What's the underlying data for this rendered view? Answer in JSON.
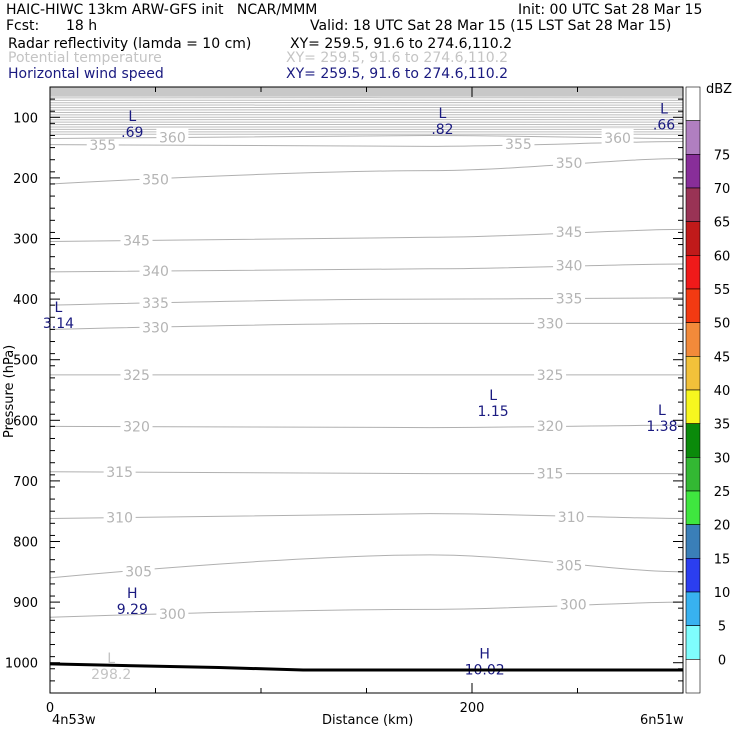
{
  "header": {
    "model_line": "HAIC-HIWC 13km ARW-GFS init   NCAR/MMM",
    "init_line": "Init: 00 UTC Sat 28 Mar 15",
    "fcst_label": "Fcst:",
    "fcst_value": "18 h",
    "valid_line": "Valid: 18 UTC Sat 28 Mar 15 (15 LST Sat 28 Mar 15)",
    "fields": [
      {
        "name": "Radar reflectivity (lamda = 10 cm)",
        "xy": "XY= 259.5, 91.6 to 274.6,110.2",
        "color": "#000000"
      },
      {
        "name": "Potential temperature",
        "xy": "XY= 259.5, 91.6 to 274.6,110.2",
        "color": "#c4c4c4"
      },
      {
        "name": "Horizontal wind speed",
        "xy": "XY= 259.5, 91.6 to 274.6,110.2",
        "color": "#1a1a80"
      }
    ]
  },
  "chart_data": {
    "type": "contour",
    "ylabel": "Pressure (hPa)",
    "xlabel": "Distance (km)",
    "x_left_label": "4n53w",
    "x_right_label": "6n51w",
    "xlim": [
      0,
      300
    ],
    "ylim": [
      1050,
      50
    ],
    "x_ticks": [
      0,
      200
    ],
    "y_ticks": [
      100,
      200,
      300,
      400,
      500,
      600,
      700,
      800,
      900,
      1000
    ],
    "theta_contours": [
      {
        "value": 300,
        "p_left": 925,
        "p_mid": 912,
        "p_right": 900,
        "labels": [
          {
            "x": 58,
            "text": "300"
          },
          {
            "x": 248,
            "text": "300"
          }
        ]
      },
      {
        "value": 305,
        "p_left": 860,
        "p_mid": 822,
        "p_right": 850,
        "labels": [
          {
            "x": 42,
            "text": "305"
          },
          {
            "x": 246,
            "text": "305"
          }
        ]
      },
      {
        "value": 310,
        "p_left": 762,
        "p_mid": 754,
        "p_right": 762,
        "labels": [
          {
            "x": 33,
            "text": "310"
          },
          {
            "x": 247,
            "text": "310"
          }
        ]
      },
      {
        "value": 315,
        "p_left": 685,
        "p_mid": 688,
        "p_right": 688,
        "labels": [
          {
            "x": 33,
            "text": "315"
          },
          {
            "x": 237,
            "text": "315"
          }
        ]
      },
      {
        "value": 320,
        "p_left": 610,
        "p_mid": 612,
        "p_right": 608,
        "labels": [
          {
            "x": 41,
            "text": "320"
          },
          {
            "x": 237,
            "text": "320"
          }
        ]
      },
      {
        "value": 325,
        "p_left": 525,
        "p_mid": 525,
        "p_right": 525,
        "labels": [
          {
            "x": 41,
            "text": "325"
          },
          {
            "x": 237,
            "text": "325"
          }
        ]
      },
      {
        "value": 330,
        "p_left": 450,
        "p_mid": 440,
        "p_right": 440,
        "labels": [
          {
            "x": 50,
            "text": "330"
          },
          {
            "x": 237,
            "text": "330"
          }
        ]
      },
      {
        "value": 335,
        "p_left": 410,
        "p_mid": 400,
        "p_right": 398,
        "labels": [
          {
            "x": 50,
            "text": "335"
          },
          {
            "x": 246,
            "text": "335"
          }
        ]
      },
      {
        "value": 340,
        "p_left": 355,
        "p_mid": 350,
        "p_right": 342,
        "labels": [
          {
            "x": 50,
            "text": "340"
          },
          {
            "x": 246,
            "text": "340"
          }
        ]
      },
      {
        "value": 345,
        "p_left": 305,
        "p_mid": 298,
        "p_right": 285,
        "labels": [
          {
            "x": 41,
            "text": "345"
          },
          {
            "x": 246,
            "text": "345"
          }
        ]
      },
      {
        "value": 350,
        "p_left": 210,
        "p_mid": 188,
        "p_right": 168,
        "labels": [
          {
            "x": 50,
            "text": "350"
          },
          {
            "x": 246,
            "text": "350"
          }
        ]
      },
      {
        "value": 355,
        "p_left": 145,
        "p_mid": 148,
        "p_right": 140,
        "labels": [
          {
            "x": 25,
            "text": "355"
          },
          {
            "x": 222,
            "text": "355"
          }
        ]
      },
      {
        "value": 360,
        "p_left": 135,
        "p_mid": 130,
        "p_right": 135,
        "labels": [
          {
            "x": 58,
            "text": "360"
          },
          {
            "x": 269,
            "text": "360"
          }
        ]
      }
    ],
    "wind_extrema": [
      {
        "type": "L",
        "value": ".69",
        "x": 39,
        "p": 113
      },
      {
        "type": "L",
        "value": ".82",
        "x": 186,
        "p": 108
      },
      {
        "type": "L",
        "value": ".66",
        "x": 291,
        "p": 100
      },
      {
        "type": "L",
        "value": "3.14",
        "x": 4,
        "p": 428
      },
      {
        "type": "L",
        "value": "1.15",
        "x": 210,
        "p": 573
      },
      {
        "type": "L",
        "value": "1.38",
        "x": 290,
        "p": 598
      },
      {
        "type": "H",
        "value": "9.29",
        "x": 39,
        "p": 900
      },
      {
        "type": "H",
        "value": "10.02",
        "x": 206,
        "p": 1000
      }
    ],
    "theta_extrema": [
      {
        "type": "L",
        "value": "298.2",
        "x": 29,
        "p": 1007
      }
    ],
    "surface_pressure": [
      {
        "x": 0,
        "p": 1002
      },
      {
        "x": 80,
        "p": 1008
      },
      {
        "x": 120,
        "p": 1012
      },
      {
        "x": 300,
        "p": 1012
      }
    ]
  },
  "colorbar": {
    "unit": "dBZ",
    "levels": [
      0,
      5,
      10,
      15,
      20,
      25,
      30,
      35,
      40,
      45,
      50,
      55,
      60,
      65,
      70,
      75
    ],
    "colors": [
      "#ffffff",
      "#7ffdfd",
      "#38b2f0",
      "#2b3ef0",
      "#3a7fb8",
      "#3fe63f",
      "#33b833",
      "#0a8a0a",
      "#f7f71f",
      "#f2c13a",
      "#f28a3a",
      "#f23a12",
      "#f01a1a",
      "#c01a1a",
      "#993355",
      "#882e99",
      "#b07fc0",
      "#ffffff"
    ]
  }
}
